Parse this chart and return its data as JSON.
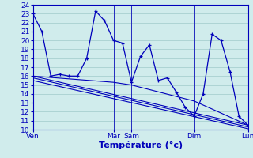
{
  "background_color": "#d0ecec",
  "grid_color": "#a8d0d0",
  "line_color": "#0000bb",
  "ylabel_range": [
    10,
    24
  ],
  "yticks": [
    10,
    11,
    12,
    13,
    14,
    15,
    16,
    17,
    18,
    19,
    20,
    21,
    22,
    23,
    24
  ],
  "xlabel": "Température (°c)",
  "xlabel_fontsize": 8,
  "tick_fontsize": 6.5,
  "xtick_labels": [
    "Ven",
    "Mar",
    "Sam",
    "Dim",
    "Lun"
  ],
  "xtick_positions": [
    0,
    9,
    11,
    18,
    24
  ],
  "series1_x": [
    0,
    1,
    2,
    3,
    4,
    5,
    6,
    7,
    8,
    9,
    10,
    11,
    12,
    13,
    14,
    15,
    16,
    17,
    18,
    19,
    20,
    21,
    22,
    23,
    24
  ],
  "series1_y": [
    23,
    21,
    16,
    16.2,
    16,
    16,
    18,
    23.3,
    22.2,
    20,
    19.7,
    15.3,
    18.2,
    19.5,
    15.5,
    15.8,
    14.2,
    12.5,
    11.5,
    14,
    20.7,
    20,
    16.5,
    11.5,
    10.5
  ],
  "trendline1_x": [
    0,
    24
  ],
  "trendline1_y": [
    16,
    10.5
  ],
  "trendline2_x": [
    0,
    24
  ],
  "trendline2_y": [
    15.8,
    10.3
  ],
  "trendline3_x": [
    0,
    24
  ],
  "trendline3_y": [
    15.5,
    10.1
  ],
  "trendline4_x": [
    0,
    9,
    11,
    18,
    24
  ],
  "trendline4_y": [
    16.0,
    15.3,
    15.0,
    13.2,
    10.5
  ]
}
